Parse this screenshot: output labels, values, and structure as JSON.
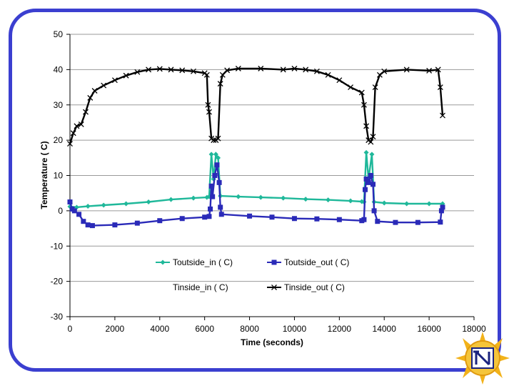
{
  "chart_data": {
    "type": "line",
    "title": "",
    "xlabel": "Time (seconds)",
    "ylabel": "Temperature ( C)",
    "xlim": [
      0,
      18000
    ],
    "ylim": [
      -30,
      50
    ],
    "xticks": [
      0,
      2000,
      4000,
      6000,
      8000,
      10000,
      12000,
      14000,
      16000,
      18000
    ],
    "yticks": [
      -30,
      -20,
      -10,
      0,
      10,
      20,
      30,
      40,
      50
    ],
    "grid": "horizontal",
    "legend": "inside-bottom",
    "series": [
      {
        "name": "Toutside_in ( C)",
        "color": "#1fb89a",
        "marker": "diamond",
        "points": [
          [
            0,
            1.2
          ],
          [
            300,
            1.0
          ],
          [
            800,
            1.3
          ],
          [
            1500,
            1.6
          ],
          [
            2500,
            2.0
          ],
          [
            3500,
            2.5
          ],
          [
            4500,
            3.2
          ],
          [
            5500,
            3.6
          ],
          [
            6100,
            3.8
          ],
          [
            6200,
            4.0
          ],
          [
            6300,
            16.0
          ],
          [
            6400,
            9.0
          ],
          [
            6500,
            16.0
          ],
          [
            6600,
            15.0
          ],
          [
            6700,
            4.2
          ],
          [
            7500,
            4.0
          ],
          [
            8500,
            3.8
          ],
          [
            9500,
            3.6
          ],
          [
            10500,
            3.3
          ],
          [
            11500,
            3.1
          ],
          [
            12500,
            2.8
          ],
          [
            13000,
            2.6
          ],
          [
            13100,
            2.5
          ],
          [
            13200,
            16.5
          ],
          [
            13300,
            9.0
          ],
          [
            13450,
            16.0
          ],
          [
            13550,
            2.5
          ],
          [
            14000,
            2.2
          ],
          [
            15000,
            2.0
          ],
          [
            16000,
            2.0
          ],
          [
            16600,
            2.0
          ]
        ]
      },
      {
        "name": "Toutside_out ( C)",
        "color": "#2a2ab8",
        "marker": "square",
        "points": [
          [
            0,
            2.5
          ],
          [
            100,
            0.5
          ],
          [
            200,
            0.0
          ],
          [
            400,
            -1.0
          ],
          [
            600,
            -3.0
          ],
          [
            800,
            -4.0
          ],
          [
            1000,
            -4.2
          ],
          [
            2000,
            -4.0
          ],
          [
            3000,
            -3.5
          ],
          [
            4000,
            -2.8
          ],
          [
            5000,
            -2.2
          ],
          [
            6000,
            -1.8
          ],
          [
            6200,
            -1.6
          ],
          [
            6250,
            0.5
          ],
          [
            6300,
            7.0
          ],
          [
            6350,
            4.0
          ],
          [
            6450,
            10.0
          ],
          [
            6550,
            13.0
          ],
          [
            6650,
            8.0
          ],
          [
            6700,
            1.0
          ],
          [
            6750,
            -1.0
          ],
          [
            8000,
            -1.5
          ],
          [
            9000,
            -1.8
          ],
          [
            10000,
            -2.2
          ],
          [
            11000,
            -2.3
          ],
          [
            12000,
            -2.5
          ],
          [
            13000,
            -2.8
          ],
          [
            13100,
            -2.5
          ],
          [
            13150,
            6.0
          ],
          [
            13200,
            9.0
          ],
          [
            13300,
            8.0
          ],
          [
            13400,
            10.0
          ],
          [
            13500,
            7.5
          ],
          [
            13550,
            0.0
          ],
          [
            13700,
            -3.0
          ],
          [
            14500,
            -3.3
          ],
          [
            15500,
            -3.3
          ],
          [
            16500,
            -3.2
          ],
          [
            16550,
            0.0
          ],
          [
            16600,
            1.0
          ]
        ]
      },
      {
        "name": "Tinside_in ( C)",
        "color": "#ffffff",
        "marker": "none",
        "points": []
      },
      {
        "name": "Tinside_out ( C)",
        "color": "#000000",
        "marker": "x",
        "points": [
          [
            0,
            19.0
          ],
          [
            150,
            22.0
          ],
          [
            300,
            24.0
          ],
          [
            500,
            24.5
          ],
          [
            700,
            28.0
          ],
          [
            900,
            32.0
          ],
          [
            1100,
            34.0
          ],
          [
            1500,
            35.5
          ],
          [
            2000,
            37.0
          ],
          [
            2500,
            38.3
          ],
          [
            3000,
            39.3
          ],
          [
            3500,
            40.0
          ],
          [
            4000,
            40.2
          ],
          [
            4500,
            40.0
          ],
          [
            5000,
            39.8
          ],
          [
            5500,
            39.5
          ],
          [
            6000,
            39.0
          ],
          [
            6100,
            38.5
          ],
          [
            6150,
            30.0
          ],
          [
            6200,
            28.0
          ],
          [
            6300,
            20.5
          ],
          [
            6400,
            20.0
          ],
          [
            6500,
            20.0
          ],
          [
            6600,
            20.5
          ],
          [
            6700,
            36.0
          ],
          [
            6800,
            38.5
          ],
          [
            7000,
            39.8
          ],
          [
            7500,
            40.3
          ],
          [
            8500,
            40.3
          ],
          [
            9500,
            40.0
          ],
          [
            10000,
            40.3
          ],
          [
            10500,
            40.0
          ],
          [
            11000,
            39.5
          ],
          [
            11500,
            38.5
          ],
          [
            12000,
            37.0
          ],
          [
            12500,
            35.0
          ],
          [
            13000,
            33.5
          ],
          [
            13100,
            30.0
          ],
          [
            13200,
            24.0
          ],
          [
            13300,
            20.0
          ],
          [
            13400,
            19.5
          ],
          [
            13500,
            21.0
          ],
          [
            13600,
            35.0
          ],
          [
            13800,
            38.5
          ],
          [
            14000,
            39.5
          ],
          [
            15000,
            40.0
          ],
          [
            16000,
            39.7
          ],
          [
            16400,
            40.0
          ],
          [
            16500,
            35.0
          ],
          [
            16600,
            27.0
          ]
        ]
      }
    ]
  }
}
